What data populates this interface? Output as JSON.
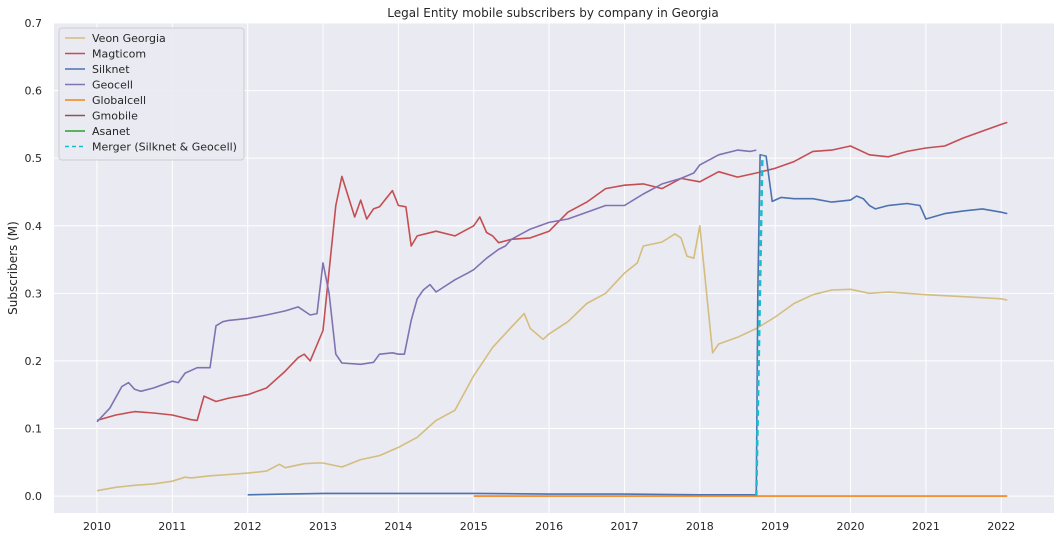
{
  "chart_data": {
    "type": "line",
    "title": "Legal Entity mobile subscribers by company in Georgia",
    "xlabel": "",
    "ylabel": "Subscribers (M)",
    "xlim": [
      2009.43,
      2022.7
    ],
    "ylim": [
      -0.025,
      0.7
    ],
    "xticks": [
      2010,
      2011,
      2012,
      2013,
      2014,
      2015,
      2016,
      2017,
      2018,
      2019,
      2020,
      2021,
      2022
    ],
    "yticks": [
      "0.0",
      "0.1",
      "0.2",
      "0.3",
      "0.4",
      "0.5",
      "0.6",
      "0.7"
    ],
    "grid": true,
    "legend_position": "upper-left",
    "background": "#eaeaf2",
    "series": [
      {
        "name": "Veon Georgia",
        "color": "#d4bd7f",
        "dash": "",
        "x": [
          2010.0,
          2010.25,
          2010.5,
          2010.75,
          2011.0,
          2011.17,
          2011.25,
          2011.5,
          2011.75,
          2012.0,
          2012.25,
          2012.42,
          2012.5,
          2012.75,
          2012.92,
          2013.0,
          2013.25,
          2013.5,
          2013.75,
          2014.0,
          2014.25,
          2014.5,
          2014.75,
          2015.0,
          2015.25,
          2015.5,
          2015.67,
          2015.75,
          2015.92,
          2016.0,
          2016.25,
          2016.5,
          2016.75,
          2017.0,
          2017.17,
          2017.25,
          2017.5,
          2017.67,
          2017.75,
          2017.83,
          2017.92,
          2018.0,
          2018.17,
          2018.25,
          2018.5,
          2018.75,
          2019.0,
          2019.25,
          2019.5,
          2019.75,
          2020.0,
          2020.25,
          2020.5,
          2020.75,
          2021.0,
          2021.5,
          2022.0,
          2022.08
        ],
        "y": [
          0.008,
          0.013,
          0.016,
          0.018,
          0.022,
          0.028,
          0.027,
          0.03,
          0.032,
          0.034,
          0.037,
          0.047,
          0.042,
          0.048,
          0.049,
          0.049,
          0.043,
          0.054,
          0.06,
          0.072,
          0.087,
          0.112,
          0.127,
          0.178,
          0.22,
          0.25,
          0.27,
          0.248,
          0.232,
          0.24,
          0.258,
          0.285,
          0.3,
          0.33,
          0.345,
          0.37,
          0.376,
          0.388,
          0.382,
          0.355,
          0.352,
          0.4,
          0.212,
          0.225,
          0.235,
          0.248,
          0.265,
          0.285,
          0.298,
          0.305,
          0.306,
          0.3,
          0.302,
          0.3,
          0.298,
          0.295,
          0.292,
          0.29
        ]
      },
      {
        "name": "Magticom",
        "color": "#c44e52",
        "dash": "",
        "x": [
          2010.0,
          2010.25,
          2010.5,
          2010.75,
          2011.0,
          2011.25,
          2011.33,
          2011.42,
          2011.58,
          2011.75,
          2012.0,
          2012.25,
          2012.5,
          2012.67,
          2012.75,
          2012.83,
          2013.0,
          2013.17,
          2013.25,
          2013.42,
          2013.5,
          2013.58,
          2013.67,
          2013.75,
          2013.92,
          2014.0,
          2014.1,
          2014.17,
          2014.25,
          2014.5,
          2014.75,
          2015.0,
          2015.08,
          2015.17,
          2015.25,
          2015.33,
          2015.5,
          2015.75,
          2016.0,
          2016.25,
          2016.5,
          2016.75,
          2017.0,
          2017.25,
          2017.5,
          2017.75,
          2018.0,
          2018.25,
          2018.5,
          2018.75,
          2019.0,
          2019.25,
          2019.5,
          2019.75,
          2020.0,
          2020.25,
          2020.5,
          2020.75,
          2021.0,
          2021.25,
          2021.5,
          2021.75,
          2022.0,
          2022.08
        ],
        "y": [
          0.112,
          0.12,
          0.125,
          0.123,
          0.12,
          0.113,
          0.112,
          0.148,
          0.14,
          0.145,
          0.15,
          0.16,
          0.185,
          0.205,
          0.21,
          0.2,
          0.245,
          0.43,
          0.473,
          0.413,
          0.438,
          0.41,
          0.425,
          0.428,
          0.452,
          0.43,
          0.428,
          0.37,
          0.385,
          0.392,
          0.385,
          0.4,
          0.413,
          0.39,
          0.385,
          0.375,
          0.38,
          0.382,
          0.392,
          0.42,
          0.435,
          0.455,
          0.46,
          0.462,
          0.455,
          0.47,
          0.465,
          0.48,
          0.472,
          0.478,
          0.485,
          0.495,
          0.51,
          0.512,
          0.518,
          0.505,
          0.502,
          0.51,
          0.515,
          0.518,
          0.53,
          0.54,
          0.55,
          0.553
        ]
      },
      {
        "name": "Silknet",
        "color": "#4c72b0",
        "dash": "",
        "x": [
          2012.0,
          2012.5,
          2013.0,
          2014.0,
          2015.0,
          2016.0,
          2017.0,
          2018.0,
          2018.75,
          2018.77,
          2018.8,
          2018.88,
          2018.96,
          2019.08,
          2019.25,
          2019.5,
          2019.75,
          2020.0,
          2020.08,
          2020.17,
          2020.25,
          2020.33,
          2020.5,
          2020.75,
          2020.92,
          2021.0,
          2021.25,
          2021.5,
          2021.75,
          2022.0,
          2022.08
        ],
        "y": [
          0.002,
          0.003,
          0.004,
          0.004,
          0.004,
          0.003,
          0.003,
          0.002,
          0.002,
          0.3,
          0.505,
          0.503,
          0.436,
          0.442,
          0.44,
          0.44,
          0.435,
          0.438,
          0.444,
          0.44,
          0.43,
          0.425,
          0.43,
          0.433,
          0.43,
          0.41,
          0.418,
          0.422,
          0.425,
          0.42,
          0.418
        ]
      },
      {
        "name": "Geocell",
        "color": "#8172b2",
        "dash": "",
        "x": [
          2010.0,
          2010.17,
          2010.33,
          2010.42,
          2010.5,
          2010.58,
          2010.75,
          2011.0,
          2011.08,
          2011.17,
          2011.33,
          2011.5,
          2011.58,
          2011.67,
          2011.75,
          2012.0,
          2012.25,
          2012.5,
          2012.67,
          2012.83,
          2012.92,
          2013.0,
          2013.08,
          2013.17,
          2013.25,
          2013.5,
          2013.67,
          2013.75,
          2013.92,
          2014.0,
          2014.08,
          2014.17,
          2014.25,
          2014.33,
          2014.42,
          2014.5,
          2014.75,
          2014.92,
          2015.0,
          2015.17,
          2015.33,
          2015.42,
          2015.5,
          2015.75,
          2016.0,
          2016.25,
          2016.5,
          2016.75,
          2017.0,
          2017.25,
          2017.5,
          2017.75,
          2017.92,
          2018.0,
          2018.25,
          2018.5,
          2018.67,
          2018.75
        ],
        "y": [
          0.11,
          0.13,
          0.162,
          0.168,
          0.158,
          0.155,
          0.16,
          0.17,
          0.168,
          0.182,
          0.19,
          0.19,
          0.252,
          0.258,
          0.26,
          0.263,
          0.268,
          0.274,
          0.28,
          0.268,
          0.27,
          0.345,
          0.3,
          0.21,
          0.197,
          0.195,
          0.198,
          0.21,
          0.212,
          0.21,
          0.21,
          0.26,
          0.292,
          0.305,
          0.313,
          0.302,
          0.32,
          0.33,
          0.335,
          0.352,
          0.365,
          0.37,
          0.38,
          0.395,
          0.405,
          0.41,
          0.42,
          0.43,
          0.43,
          0.447,
          0.462,
          0.47,
          0.478,
          0.49,
          0.505,
          0.512,
          0.51,
          0.512
        ]
      },
      {
        "name": "Globalcell",
        "color": "#f58518",
        "dash": "",
        "x": [
          2015.0,
          2016.0,
          2017.0,
          2018.0,
          2019.0,
          2020.0,
          2021.0,
          2022.08
        ],
        "y": [
          0.0,
          0.0,
          0.0,
          0.0,
          0.0,
          0.0,
          0.0,
          0.0
        ]
      },
      {
        "name": "Gmobile",
        "color": "#8c564b",
        "dash": "",
        "x": [],
        "y": []
      },
      {
        "name": "Asanet",
        "color": "#2ca02c",
        "dash": "",
        "x": [],
        "y": []
      },
      {
        "name": "Merger (Silknet & Geocell)",
        "color": "#17becf",
        "dash": "6,4",
        "x": [
          2018.75,
          2018.83
        ],
        "y": [
          0.0,
          0.505
        ]
      }
    ]
  }
}
